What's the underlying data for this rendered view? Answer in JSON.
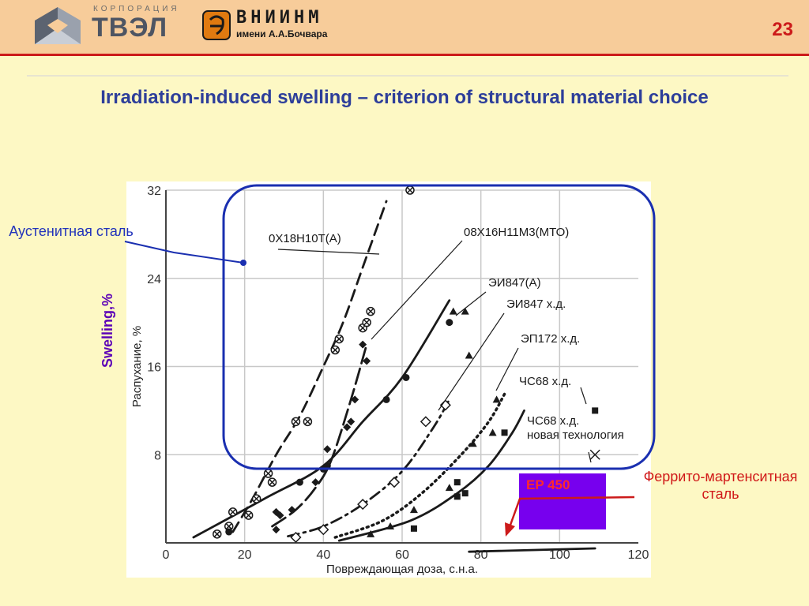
{
  "header": {
    "tvel_caption": "КОРПОРАЦИЯ",
    "tvel_name": "ТВЭЛ",
    "vniinm_name": "ВНИИНМ",
    "vniinm_sub": "имени А.А.Бочвара",
    "page_number": "23"
  },
  "title": "Irradiation-induced swelling – criterion of structural material choice",
  "annotations": {
    "austenitic": "Аустенитная сталь",
    "ferritic": "Феррито-мартенситная сталь",
    "swelling_axis": "Swelling,%",
    "ep450": "EP 450"
  },
  "colors": {
    "header_bg": "#f7cc9a",
    "accent_red": "#cc1a1a",
    "title_blue": "#2d3e9a",
    "frame_blue": "#1a2fb0",
    "ep450_fill": "#7700ee",
    "swelling_purple": "#5b00b7",
    "page_bg": "#fdf8c4"
  },
  "chart_data": {
    "type": "line",
    "xlabel": "Повреждающая доза, с.н.а.",
    "ylabel": "Распухание, %",
    "xlim": [
      0,
      120
    ],
    "ylim": [
      0,
      32
    ],
    "xticks": [
      0,
      20,
      40,
      60,
      80,
      100,
      120
    ],
    "yticks": [
      8,
      16,
      24,
      32
    ],
    "grid": true,
    "series": [
      {
        "name": "0Х18Н10Т(А)",
        "style": "dashed",
        "marker": "circle-x",
        "curve": [
          [
            17,
            1
          ],
          [
            22,
            4
          ],
          [
            28,
            8
          ],
          [
            34,
            11.5
          ],
          [
            40,
            16
          ],
          [
            45,
            20
          ],
          [
            50,
            25
          ],
          [
            56,
            31
          ]
        ],
        "points": [
          [
            13,
            0.8
          ],
          [
            16,
            1.5
          ],
          [
            17,
            2.8
          ],
          [
            21,
            2.5
          ],
          [
            23,
            4
          ],
          [
            26,
            6.3
          ],
          [
            27,
            5.5
          ],
          [
            33,
            11
          ],
          [
            36,
            11
          ],
          [
            43,
            17.5
          ],
          [
            44,
            18.5
          ],
          [
            50,
            19.5
          ],
          [
            52,
            21
          ],
          [
            51,
            20
          ],
          [
            62,
            32
          ]
        ]
      },
      {
        "name": "08Х16Н11М3(МТО)",
        "style": "long-dash",
        "marker": "diamond",
        "curve": [
          [
            27,
            1.5
          ],
          [
            33,
            3
          ],
          [
            38,
            5
          ],
          [
            42,
            7.5
          ],
          [
            47,
            13
          ],
          [
            51,
            18
          ]
        ],
        "points": [
          [
            28,
            1.2
          ],
          [
            28,
            2.8
          ],
          [
            29,
            2.5
          ],
          [
            32,
            3
          ],
          [
            38,
            5.5
          ],
          [
            41,
            8.5
          ],
          [
            46,
            10.5
          ],
          [
            47,
            11
          ],
          [
            48,
            13
          ],
          [
            51,
            16.5
          ],
          [
            50,
            18
          ]
        ]
      },
      {
        "name": "ЭИ847(А)",
        "style": "solid",
        "marker": "circle",
        "curve": [
          [
            7,
            0.5
          ],
          [
            25,
            4
          ],
          [
            40,
            7
          ],
          [
            50,
            11
          ],
          [
            60,
            15
          ],
          [
            72,
            22
          ]
        ],
        "points": [
          [
            16,
            1
          ],
          [
            34,
            5.5
          ],
          [
            41,
            7
          ],
          [
            40,
            6.7
          ],
          [
            56,
            13
          ],
          [
            61,
            15
          ],
          [
            72,
            20
          ]
        ]
      },
      {
        "name": "ЭИ847 х.д.",
        "style": "dash-dot",
        "marker": "open-diamond",
        "curve": [
          [
            31,
            0.6
          ],
          [
            40,
            1.5
          ],
          [
            50,
            3.5
          ],
          [
            60,
            6.5
          ],
          [
            68,
            10.5
          ],
          [
            72,
            13
          ]
        ],
        "points": [
          [
            33,
            0.5
          ],
          [
            40,
            1.2
          ],
          [
            50,
            3.5
          ],
          [
            58,
            5.5
          ],
          [
            66,
            11
          ],
          [
            71,
            12.5
          ]
        ]
      },
      {
        "name": "ЭП172 х.д.",
        "style": "dotted",
        "marker": "triangle",
        "curve": [
          [
            43,
            0.5
          ],
          [
            55,
            2
          ],
          [
            65,
            4.5
          ],
          [
            75,
            8
          ],
          [
            82,
            11
          ],
          [
            86,
            13.5
          ]
        ],
        "points": [
          [
            52,
            0.8
          ],
          [
            57,
            1.5
          ],
          [
            63,
            3
          ],
          [
            72,
            5
          ],
          [
            73,
            21
          ],
          [
            76,
            21
          ],
          [
            77,
            17
          ],
          [
            78,
            9
          ],
          [
            83,
            10
          ],
          [
            84,
            13
          ]
        ]
      },
      {
        "name": "ЧС68 х.д.",
        "style": "solid",
        "marker": "square",
        "curve": [
          [
            44,
            0.2
          ],
          [
            62,
            2
          ],
          [
            74,
            4.5
          ],
          [
            82,
            7
          ],
          [
            88,
            10
          ],
          [
            91,
            12
          ]
        ],
        "points": [
          [
            63,
            1.3
          ],
          [
            74,
            4.2
          ],
          [
            74,
            5.5
          ],
          [
            76,
            4.5
          ],
          [
            86,
            10
          ],
          [
            109,
            12
          ]
        ]
      },
      {
        "name": "ЧС68 х.д. новая технология",
        "style": "solid",
        "marker": "cross",
        "curve": [
          [
            77,
            -0.8
          ],
          [
            109,
            -0.5
          ]
        ],
        "points": [
          [
            109,
            8
          ]
        ]
      }
    ]
  }
}
